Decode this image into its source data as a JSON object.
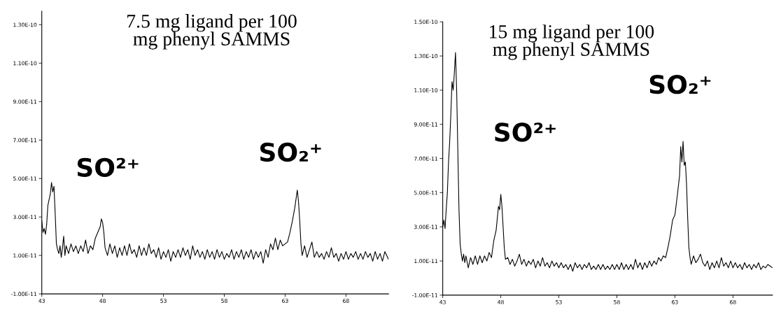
{
  "chart_data": [
    {
      "type": "line",
      "title": "7.5 mg ligand per 100\nmg phenyl SAMMS",
      "xlim": [
        43,
        71.5
      ],
      "xticks": [
        43,
        48,
        53,
        58,
        63,
        68
      ],
      "ylim": [
        -1e-11,
        1.37e-10
      ],
      "yticks": [
        {
          "value": -1e-11,
          "label": "-1.00E-11"
        },
        {
          "value": 1e-11,
          "label": "1.00E-11"
        },
        {
          "value": 3e-11,
          "label": "3.00E-11"
        },
        {
          "value": 5e-11,
          "label": "5.00E-11"
        },
        {
          "value": 7e-11,
          "label": "7.00E-11"
        },
        {
          "value": 9e-11,
          "label": "9.00E-11"
        },
        {
          "value": 1.1e-10,
          "label": "1.10E-10"
        },
        {
          "value": 1.3e-10,
          "label": "1.30E-10"
        }
      ],
      "grid": false,
      "annotations": [
        "SO²⁺",
        "SO₂⁺"
      ],
      "series": [
        {
          "color": "#000000",
          "x": [
            43.0,
            43.1,
            43.2,
            43.3,
            43.4,
            43.5,
            43.6,
            43.7,
            43.8,
            43.9,
            44.0,
            44.1,
            44.2,
            44.3,
            44.4,
            44.5,
            44.6,
            44.7,
            44.8,
            44.9,
            45.0,
            45.2,
            45.4,
            45.6,
            45.8,
            46.0,
            46.2,
            46.4,
            46.6,
            46.8,
            47.0,
            47.2,
            47.4,
            47.6,
            47.8,
            47.9,
            48.0,
            48.1,
            48.2,
            48.4,
            48.6,
            48.8,
            49.0,
            49.2,
            49.4,
            49.6,
            49.8,
            50.0,
            50.2,
            50.4,
            50.6,
            50.8,
            51.0,
            51.2,
            51.4,
            51.6,
            51.8,
            52.0,
            52.2,
            52.4,
            52.6,
            52.8,
            53.0,
            53.2,
            53.4,
            53.6,
            53.8,
            54.0,
            54.2,
            54.4,
            54.6,
            54.8,
            55.0,
            55.2,
            55.4,
            55.6,
            55.8,
            56.0,
            56.2,
            56.4,
            56.6,
            56.8,
            57.0,
            57.2,
            57.4,
            57.6,
            57.8,
            58.0,
            58.2,
            58.4,
            58.6,
            58.8,
            59.0,
            59.2,
            59.4,
            59.6,
            59.8,
            60.0,
            60.2,
            60.4,
            60.6,
            60.8,
            61.0,
            61.2,
            61.4,
            61.6,
            61.8,
            62.0,
            62.2,
            62.4,
            62.6,
            62.8,
            63.0,
            63.2,
            63.4,
            63.6,
            63.8,
            64.0,
            64.1,
            64.2,
            64.3,
            64.4,
            64.6,
            64.8,
            65.0,
            65.2,
            65.4,
            65.6,
            65.8,
            66.0,
            66.2,
            66.4,
            66.6,
            66.8,
            67.0,
            67.2,
            67.4,
            67.6,
            67.8,
            68.0,
            68.2,
            68.4,
            68.6,
            68.8,
            69.0,
            69.2,
            69.4,
            69.6,
            69.8,
            70.0,
            70.2,
            70.4,
            70.6,
            70.8,
            71.0,
            71.2,
            71.5
          ],
          "values": [
            2.8e-11,
            2.2e-11,
            2.4e-11,
            2.1e-11,
            2.6e-11,
            3.6e-11,
            3.9e-11,
            4.2e-11,
            4.8e-11,
            4.3e-11,
            4.6e-11,
            3.2e-11,
            1.6e-11,
            1.3e-11,
            1.1e-11,
            1.5e-11,
            9e-12,
            1.4e-11,
            2e-11,
            1e-11,
            1.5e-11,
            1.1e-11,
            1.6e-11,
            1.2e-11,
            1.5e-11,
            1.1e-11,
            1.5e-11,
            1.2e-11,
            1.8e-11,
            1.1e-11,
            1.5e-11,
            1.3e-11,
            1.9e-11,
            2.2e-11,
            2.5e-11,
            2.9e-11,
            2.7e-11,
            2.2e-11,
            1.4e-11,
            1e-11,
            1.6e-11,
            1.1e-11,
            1.5e-11,
            9e-12,
            1.4e-11,
            1e-11,
            1.5e-11,
            1e-11,
            1.6e-11,
            1.1e-11,
            1.3e-11,
            9e-12,
            1.5e-11,
            1e-11,
            1.4e-11,
            1e-11,
            1.6e-11,
            1.1e-11,
            1.3e-11,
            9e-12,
            1.4e-11,
            8e-12,
            1.2e-11,
            9e-12,
            1.3e-11,
            7e-12,
            1.2e-11,
            9e-12,
            1.3e-11,
            9e-12,
            1.4e-11,
            1e-11,
            1.3e-11,
            8e-12,
            1.5e-11,
            1e-11,
            1.3e-11,
            9e-12,
            1.2e-11,
            8e-12,
            1.3e-11,
            9e-12,
            1.2e-11,
            8e-12,
            1.3e-11,
            9e-12,
            1.2e-11,
            8e-12,
            1.1e-11,
            9e-12,
            1.3e-11,
            8e-12,
            1.2e-11,
            9e-12,
            1.3e-11,
            8e-12,
            1.2e-11,
            9e-12,
            1.3e-11,
            8e-12,
            1.2e-11,
            9e-12,
            1.2e-11,
            6e-12,
            1.3e-11,
            9e-12,
            1.6e-11,
            1.3e-11,
            1.9e-11,
            1.3e-11,
            1.8e-11,
            1.5e-11,
            1.6e-11,
            1.7e-11,
            2.2e-11,
            2.8e-11,
            3.5e-11,
            4.4e-11,
            3.8e-11,
            2.8e-11,
            1.6e-11,
            1e-11,
            1.5e-11,
            9e-12,
            1.3e-11,
            1.7e-11,
            9e-12,
            1.2e-11,
            9e-12,
            1.1e-11,
            8e-12,
            1.2e-11,
            9e-12,
            1.4e-11,
            9e-12,
            1.1e-11,
            7e-12,
            1.1e-11,
            8e-12,
            1.2e-11,
            8e-12,
            1.1e-11,
            9e-12,
            1.2e-11,
            8e-12,
            1.1e-11,
            8e-12,
            1.2e-11,
            9e-12,
            1.1e-11,
            7e-12,
            1.2e-11,
            8e-12,
            1.1e-11,
            7e-12,
            1.2e-11,
            8e-12
          ]
        }
      ]
    },
    {
      "type": "line",
      "title": "15 mg ligand per 100\nmg phenyl SAMMS",
      "xlim": [
        43,
        71.4
      ],
      "xticks": [
        43,
        48,
        53,
        58,
        63,
        68
      ],
      "ylim": [
        -1e-11,
        1.5e-10
      ],
      "yticks": [
        {
          "value": -1e-11,
          "label": "-1.00E-11"
        },
        {
          "value": 1e-11,
          "label": "1.00E-11"
        },
        {
          "value": 3e-11,
          "label": "3.00E-11"
        },
        {
          "value": 5e-11,
          "label": "5.00E-11"
        },
        {
          "value": 7e-11,
          "label": "7.00E-11"
        },
        {
          "value": 9e-11,
          "label": "9.00E-11"
        },
        {
          "value": 1.1e-10,
          "label": "1.10E-10"
        },
        {
          "value": 1.3e-10,
          "label": "1.30E-10"
        },
        {
          "value": 1.5e-10,
          "label": "1.50E-10"
        }
      ],
      "grid": false,
      "annotations": [
        "SO²⁺",
        "SO₂⁺"
      ],
      "series": [
        {
          "color": "#000000",
          "x": [
            43.0,
            43.1,
            43.2,
            43.3,
            43.4,
            43.5,
            43.6,
            43.7,
            43.8,
            43.9,
            44.0,
            44.1,
            44.2,
            44.3,
            44.4,
            44.5,
            44.6,
            44.7,
            44.8,
            44.9,
            45.0,
            45.2,
            45.4,
            45.6,
            45.8,
            46.0,
            46.2,
            46.4,
            46.6,
            46.8,
            47.0,
            47.2,
            47.4,
            47.6,
            47.7,
            47.8,
            47.9,
            48.0,
            48.1,
            48.2,
            48.3,
            48.4,
            48.6,
            48.8,
            49.0,
            49.2,
            49.4,
            49.6,
            49.8,
            50.0,
            50.2,
            50.4,
            50.6,
            50.8,
            51.0,
            51.2,
            51.4,
            51.6,
            51.8,
            52.0,
            52.2,
            52.4,
            52.6,
            52.8,
            53.0,
            53.2,
            53.4,
            53.6,
            53.8,
            54.0,
            54.2,
            54.4,
            54.6,
            54.8,
            55.0,
            55.2,
            55.4,
            55.6,
            55.8,
            56.0,
            56.2,
            56.4,
            56.6,
            56.8,
            57.0,
            57.2,
            57.4,
            57.6,
            57.8,
            58.0,
            58.2,
            58.4,
            58.6,
            58.8,
            59.0,
            59.2,
            59.4,
            59.6,
            59.8,
            60.0,
            60.2,
            60.4,
            60.6,
            60.8,
            61.0,
            61.2,
            61.4,
            61.6,
            61.8,
            62.0,
            62.2,
            62.4,
            62.6,
            62.8,
            63.0,
            63.2,
            63.4,
            63.5,
            63.6,
            63.7,
            63.8,
            63.9,
            64.0,
            64.1,
            64.2,
            64.3,
            64.4,
            64.6,
            64.8,
            65.0,
            65.2,
            65.4,
            65.6,
            65.8,
            66.0,
            66.2,
            66.4,
            66.6,
            66.8,
            67.0,
            67.2,
            67.4,
            67.6,
            67.8,
            68.0,
            68.2,
            68.4,
            68.6,
            68.8,
            69.0,
            69.2,
            69.4,
            69.6,
            69.8,
            70.0,
            70.2,
            70.4,
            70.6,
            70.8,
            71.0,
            71.4
          ],
          "values": [
            3e-11,
            3.4e-11,
            2.9e-11,
            4e-11,
            5e-11,
            6.8e-11,
            8e-11,
            9.6e-11,
            1.15e-10,
            1.1e-10,
            1.2e-10,
            1.32e-10,
            1.1e-10,
            7.5e-11,
            4e-11,
            2e-11,
            1.4e-11,
            1e-11,
            1.4e-11,
            9e-12,
            1.3e-11,
            6e-12,
            1.2e-11,
            8e-12,
            1.3e-11,
            8e-12,
            1.3e-11,
            9e-12,
            1.3e-11,
            1e-11,
            1.5e-11,
            1.2e-11,
            2.2e-11,
            2.8e-11,
            3.5e-11,
            4.2e-11,
            4e-11,
            4.9e-11,
            4.2e-11,
            3e-11,
            1.8e-11,
            1.1e-11,
            1.2e-11,
            8e-12,
            1.1e-11,
            7e-12,
            1e-11,
            1.4e-11,
            8e-12,
            1.1e-11,
            7e-12,
            1e-11,
            8e-12,
            1.1e-11,
            6e-12,
            1e-11,
            7e-12,
            1.2e-11,
            7e-12,
            9e-12,
            6e-12,
            1e-11,
            7e-12,
            9e-12,
            6e-12,
            9e-12,
            6e-12,
            8e-12,
            5e-12,
            8e-12,
            4e-12,
            9e-12,
            6e-12,
            8e-12,
            5e-12,
            8e-12,
            6e-12,
            9e-12,
            5e-12,
            7e-12,
            5e-12,
            8e-12,
            5e-12,
            8e-12,
            5e-12,
            7e-12,
            5e-12,
            8e-12,
            5e-12,
            8e-12,
            5e-12,
            9e-12,
            5e-12,
            8e-12,
            5e-12,
            8e-12,
            5e-12,
            1.1e-11,
            6e-12,
            9e-12,
            5e-12,
            9e-12,
            6e-12,
            1e-11,
            7e-12,
            1e-11,
            8e-12,
            1.2e-11,
            1e-11,
            1.3e-11,
            1.2e-11,
            1.8e-11,
            2.5e-11,
            3.4e-11,
            3.7e-11,
            4.8e-11,
            6e-11,
            7.7e-11,
            6.8e-11,
            8e-11,
            6.6e-11,
            6.8e-11,
            5.5e-11,
            3.5e-11,
            1.8e-11,
            1.2e-11,
            8e-12,
            1.3e-11,
            9e-12,
            1.1e-11,
            1.4e-11,
            9e-12,
            7e-12,
            1e-11,
            5e-12,
            9e-12,
            6e-12,
            1e-11,
            6e-12,
            1.2e-11,
            7e-12,
            9e-12,
            6e-12,
            1e-11,
            6e-12,
            9e-12,
            6e-12,
            8e-12,
            5e-12,
            9e-12,
            6e-12,
            8e-12,
            5e-12,
            8e-12,
            6e-12,
            9e-12,
            5e-12,
            7e-12,
            6e-12,
            8e-12,
            6e-12
          ]
        }
      ]
    }
  ]
}
